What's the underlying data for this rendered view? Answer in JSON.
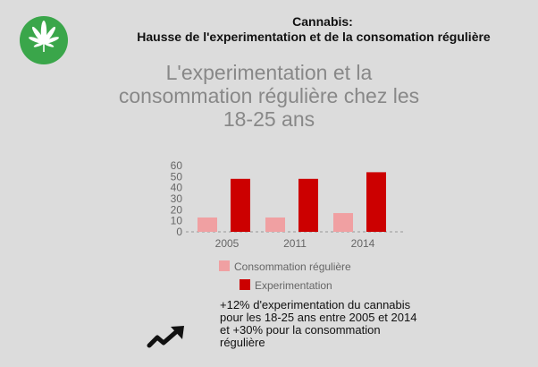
{
  "header": {
    "title": "Cannabis:",
    "subtitle": "Hausse de l'experimentation et de la consomation régulière"
  },
  "chart_data": {
    "type": "bar",
    "title": "L'experimentation et la consommation régulière chez les 18-25 ans",
    "categories": [
      "2005",
      "2011",
      "2014"
    ],
    "series": [
      {
        "name": "Consommation régulière",
        "values": [
          13,
          13,
          17
        ],
        "color": "#f0a0a2"
      },
      {
        "name": "Experimentation",
        "values": [
          48,
          48,
          54
        ],
        "color": "#cc0000"
      }
    ],
    "ylim": [
      0,
      60
    ],
    "yticks": [
      "0",
      "10",
      "20",
      "30",
      "40",
      "50",
      "60"
    ],
    "xlabel": "",
    "ylabel": "",
    "legend_position": "bottom"
  },
  "note": "+12% d'experimentation du cannabis pour les 18-25 ans entre 2005 et 2014 et +30% pour la consommation régulière",
  "icons": {
    "logo": "cannabis-leaf-icon",
    "trend": "trend-up-arrow-icon"
  }
}
